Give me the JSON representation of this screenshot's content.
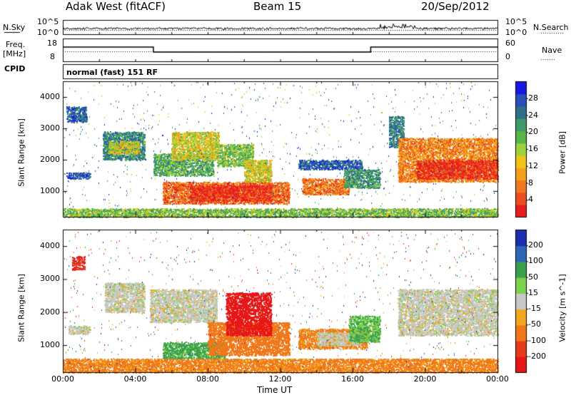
{
  "header": {
    "station": "Adak West (fitACF)",
    "beam": "Beam 15",
    "date": "20/Sep/2012"
  },
  "noise_panel": {
    "left_label": "N.Sky",
    "right_label": "N.Search",
    "left_ticks": [
      "10^5",
      "10^0"
    ],
    "right_ticks": [
      "10^5",
      "10^0"
    ]
  },
  "freq_panel": {
    "left_label": "Freq.",
    "left_unit": "[MHz]",
    "right_label": "Nave",
    "left_ticks": [
      "18",
      "8"
    ],
    "right_ticks": [
      "60",
      "0"
    ],
    "cpid_label": "CPID",
    "cpid_value": "normal (fast) 151 RF"
  },
  "chart_data": [
    {
      "type": "heatmap",
      "quantity": "Power",
      "ylabel": "Slant Range [km]",
      "xlabel": "",
      "xlim_hours": [
        0,
        24
      ],
      "ylim_km": [
        180,
        4500
      ],
      "y_ticks": [
        1000,
        2000,
        3000,
        4000
      ],
      "colorbar": {
        "label": "Power [dB]",
        "ticks": [
          4,
          8,
          12,
          16,
          20,
          24,
          28
        ],
        "colors": [
          "#1818e6",
          "#2a4fb8",
          "#2f6f8e",
          "#3f9a6a",
          "#58b54a",
          "#9fd23a",
          "#f2c418",
          "#f4a01a",
          "#f07820",
          "#ec4e1f",
          "#e81e1e"
        ]
      },
      "regions": [
        {
          "t": [
            0.2,
            1.3
          ],
          "r": [
            3200,
            3700
          ],
          "v": 6
        },
        {
          "t": [
            0.2,
            1.5
          ],
          "r": [
            1400,
            1600
          ],
          "v": 5
        },
        {
          "t": [
            2.2,
            4.5
          ],
          "r": [
            2000,
            2900
          ],
          "v": 9
        },
        {
          "t": [
            2.5,
            4.2
          ],
          "r": [
            2200,
            2600
          ],
          "v": 18
        },
        {
          "t": [
            5.0,
            8.3
          ],
          "r": [
            1500,
            2200
          ],
          "v": 12
        },
        {
          "t": [
            6.0,
            8.6
          ],
          "r": [
            2000,
            2900
          ],
          "v": 18
        },
        {
          "t": [
            5.5,
            12.5
          ],
          "r": [
            600,
            1300
          ],
          "v": 26
        },
        {
          "t": [
            7.0,
            11.5
          ],
          "r": [
            700,
            1200
          ],
          "v": 30
        },
        {
          "t": [
            8.5,
            10.5
          ],
          "r": [
            1800,
            2500
          ],
          "v": 14
        },
        {
          "t": [
            10.0,
            11.5
          ],
          "r": [
            1300,
            2000
          ],
          "v": 18
        },
        {
          "t": [
            13.2,
            15.8
          ],
          "r": [
            900,
            1400
          ],
          "v": 25
        },
        {
          "t": [
            13.0,
            16.5
          ],
          "r": [
            1700,
            2000
          ],
          "v": 6
        },
        {
          "t": [
            15.5,
            17.5
          ],
          "r": [
            1100,
            1700
          ],
          "v": 10
        },
        {
          "t": [
            18.0,
            18.8
          ],
          "r": [
            2400,
            3400
          ],
          "v": 8
        },
        {
          "t": [
            18.5,
            24.0
          ],
          "r": [
            1300,
            2700
          ],
          "v": 24
        },
        {
          "t": [
            19.5,
            24.0
          ],
          "r": [
            1400,
            2000
          ],
          "v": 30
        },
        {
          "t": [
            0.0,
            24.0
          ],
          "r": [
            180,
            450
          ],
          "v": 14
        }
      ]
    },
    {
      "type": "heatmap",
      "quantity": "Velocity",
      "ylabel": "Slant Range [km]",
      "xlabel": "Time UT",
      "xlim_hours": [
        0,
        24
      ],
      "ylim_km": [
        180,
        4500
      ],
      "x_tick_labels": [
        "00:00",
        "04:00",
        "08:00",
        "12:00",
        "16:00",
        "20:00",
        "00:00"
      ],
      "y_ticks": [
        1000,
        2000,
        3000,
        4000
      ],
      "colorbar": {
        "label": "Velocity [m s^-1]",
        "ticks": [
          200,
          100,
          50,
          15,
          -15,
          -50,
          -100,
          -200
        ],
        "colors": [
          "#1c2fb0",
          "#2d68b8",
          "#3aa050",
          "#7ed14a",
          "#c8c8c8",
          "#f2a81c",
          "#f07818",
          "#e83a1a",
          "#e81616"
        ]
      },
      "regions": [
        {
          "t": [
            0.5,
            1.2
          ],
          "r": [
            3300,
            3700
          ],
          "v": -200
        },
        {
          "t": [
            0.3,
            1.5
          ],
          "r": [
            1350,
            1600
          ],
          "v": 0
        },
        {
          "t": [
            2.3,
            4.5
          ],
          "r": [
            2000,
            2900
          ],
          "v": 0
        },
        {
          "t": [
            4.8,
            8.5
          ],
          "r": [
            1700,
            2700
          ],
          "v": 0
        },
        {
          "t": [
            5.5,
            9.0
          ],
          "r": [
            600,
            1100
          ],
          "v": 60
        },
        {
          "t": [
            8.0,
            12.5
          ],
          "r": [
            700,
            1700
          ],
          "v": -70
        },
        {
          "t": [
            9.0,
            11.5
          ],
          "r": [
            1300,
            2600
          ],
          "v": -220
        },
        {
          "t": [
            13.0,
            16.8
          ],
          "r": [
            900,
            1500
          ],
          "v": -60
        },
        {
          "t": [
            14.0,
            16.5
          ],
          "r": [
            1000,
            1400
          ],
          "v": 0
        },
        {
          "t": [
            15.8,
            17.5
          ],
          "r": [
            1100,
            1900
          ],
          "v": 50
        },
        {
          "t": [
            18.5,
            24.0
          ],
          "r": [
            1300,
            2700
          ],
          "v": 0
        },
        {
          "t": [
            0.0,
            24.0
          ],
          "r": [
            180,
            600
          ],
          "v": -60
        }
      ]
    }
  ]
}
